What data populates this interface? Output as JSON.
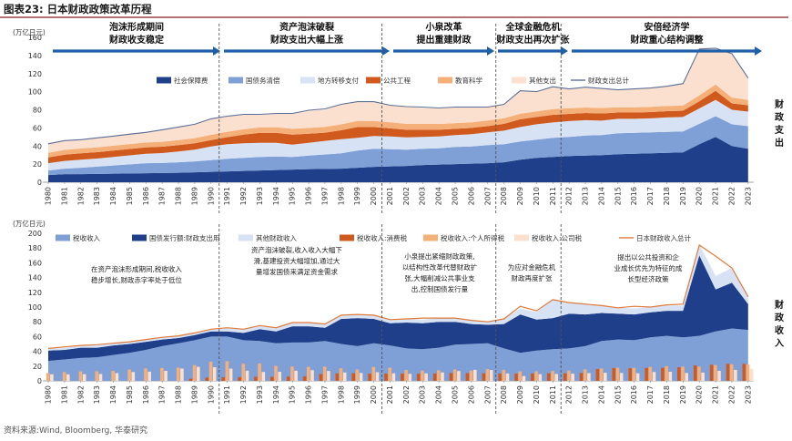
{
  "figure": {
    "title": "图表23:  日本财政政策改革历程",
    "source": "资料来源:Wind, Bloomberg, 华泰研究",
    "colors": {
      "dark_blue": "#1F3F8A",
      "mid_blue": "#7FA0D6",
      "light_blue": "#D8E2F5",
      "orange": "#D05A1E",
      "light_orange": "#F5B07A",
      "pale_orange": "#FBE0CF",
      "line": "#5A6F96",
      "arrow": "#1F5FA8",
      "title_rule": "#8B1A1A"
    }
  },
  "phases": [
    {
      "lines": [
        "泡沫形成期间",
        "财政收支稳定"
      ]
    },
    {
      "lines": [
        "资产泡沫破裂",
        "财政支出大幅上涨"
      ]
    },
    {
      "lines": [
        "小泉改革",
        "提出重建财政"
      ]
    },
    {
      "lines": [
        "全球金融危机",
        "财政支出再次扩张"
      ]
    },
    {
      "lines": [
        "安倍经济学",
        "财政重心结构调整"
      ]
    }
  ],
  "notes": [
    {
      "lines": [
        "在资产泡沫形成期间,税收收入",
        "稳步增长,财政赤字率处于低位"
      ]
    },
    {
      "lines": [
        "资产泡沫破裂,收入收入大幅下",
        "滑,基建投资大幅增加,通过大",
        "量增发国债来满足资金需求"
      ]
    },
    {
      "lines": [
        "小泉提出紧缩财政政策,",
        "以结构性改革代替财政扩",
        "张,大幅削减公共事业支",
        "出,控制国债发行量"
      ]
    },
    {
      "lines": [
        "为应对金融危机",
        "财政再度扩张"
      ]
    },
    {
      "lines": [
        "提出以公共投资和企",
        "业成长优先为特征的成",
        "长型经济政策"
      ]
    }
  ],
  "chart_data": [
    {
      "type": "area",
      "id": "expenditure",
      "unit_label": "(万亿日元)",
      "side_label": "财政支出",
      "ylim": [
        0,
        160
      ],
      "yticks": [
        0,
        20,
        40,
        60,
        80,
        100,
        120,
        140,
        160
      ],
      "x": [
        1980,
        1981,
        1982,
        1983,
        1984,
        1985,
        1986,
        1987,
        1988,
        1989,
        1990,
        1991,
        1992,
        1993,
        1994,
        1995,
        1996,
        1997,
        1998,
        1999,
        2000,
        2001,
        2002,
        2003,
        2004,
        2005,
        2006,
        2007,
        2008,
        2009,
        2010,
        2011,
        2012,
        2013,
        2014,
        2015,
        2016,
        2017,
        2018,
        2019,
        2020,
        2021,
        2022,
        2023
      ],
      "legend_placement": "top",
      "series": [
        {
          "name": "社会保障费",
          "color": "#1F3F8A",
          "values": [
            8,
            9,
            9,
            9.2,
            9.5,
            9.7,
            10,
            10.2,
            10.5,
            11,
            11.5,
            12,
            12.5,
            13,
            13.5,
            14,
            14.5,
            14.7,
            15,
            16,
            17,
            17.5,
            18,
            19,
            19.5,
            20,
            20.5,
            21,
            22,
            25,
            27,
            28,
            29,
            29.5,
            30,
            31,
            31.5,
            32,
            32.5,
            33,
            42,
            50,
            40,
            37
          ]
        },
        {
          "name": "国债务清偿",
          "color": "#7FA0D6",
          "values": [
            5,
            6,
            7,
            8,
            9,
            10,
            11,
            11,
            11.5,
            12,
            13,
            14,
            14.5,
            15,
            15,
            14,
            15,
            16,
            17,
            19,
            20,
            19,
            18,
            18,
            18,
            19,
            19,
            20,
            20,
            20,
            20,
            21,
            21,
            22,
            22,
            23,
            23,
            23,
            23,
            23,
            22.5,
            23,
            24,
            25
          ]
        },
        {
          "name": "地方转移支付",
          "color": "#D8E2F5",
          "values": [
            8,
            8.5,
            9,
            9,
            9.5,
            10,
            10.5,
            11,
            12,
            13,
            15,
            16,
            16,
            15.5,
            15,
            13.5,
            14,
            15,
            15.5,
            14,
            14,
            14,
            13.5,
            13,
            13,
            13,
            13.5,
            14,
            15,
            16,
            17,
            17,
            17.5,
            17,
            16,
            16,
            15.5,
            15.5,
            16,
            16,
            17,
            18,
            16,
            16
          ]
        },
        {
          "name": "公共工程",
          "color": "#D05A1E",
          "values": [
            6.5,
            7,
            7,
            7,
            7,
            7,
            6.9,
            7,
            7,
            7,
            7,
            7.8,
            9.5,
            11,
            11,
            11,
            10,
            9,
            10,
            12,
            10,
            9,
            8.5,
            8,
            7.5,
            7,
            7,
            7,
            7.5,
            8.5,
            8,
            8.5,
            8,
            8,
            8,
            7,
            7,
            7,
            7,
            7,
            8,
            10,
            7,
            7
          ]
        },
        {
          "name": "教育科学",
          "color": "#F5B07A",
          "values": [
            5,
            5.2,
            5.2,
            5.3,
            5.4,
            5.5,
            5.5,
            5.5,
            5.6,
            5.7,
            5.8,
            5.9,
            6,
            6.2,
            6.3,
            6.5,
            6.5,
            6.5,
            6.5,
            6.6,
            6.6,
            6.6,
            6.5,
            6.5,
            6.4,
            6.3,
            6.2,
            6.1,
            6.1,
            6.3,
            6.2,
            6.2,
            6.2,
            6,
            6,
            5.8,
            5.8,
            5.7,
            5.7,
            5.6,
            6.5,
            7,
            6.5,
            6
          ]
        },
        {
          "name": "其他支出",
          "color": "#FBE0CF",
          "values": [
            10,
            10.3,
            10.3,
            10.5,
            11,
            11.8,
            11.6,
            13.3,
            14.4,
            15.3,
            17.7,
            17.3,
            16.5,
            14.3,
            15.2,
            17,
            19,
            18.8,
            22,
            21.4,
            21.4,
            18.9,
            19,
            17.5,
            17.6,
            17.7,
            16.8,
            14.9,
            15.4,
            25.2,
            21.8,
            25.3,
            21.3,
            22.5,
            21.5,
            19.2,
            20.2,
            20.8,
            21.8,
            24.4,
            52.5,
            40,
            48.5,
            24
          ]
        },
        {
          "name": "财政支出总计",
          "color": "#5A6F96",
          "type": "line",
          "values": [
            42.5,
            46,
            47,
            49,
            50.9,
            53,
            55,
            58,
            61,
            64,
            70,
            73,
            75,
            75,
            76,
            76,
            79.5,
            81,
            86,
            89,
            89,
            85,
            83.5,
            83,
            82,
            83,
            83,
            83,
            86,
            101,
            100,
            105.5,
            103,
            105,
            103.5,
            102,
            103,
            104,
            106,
            109,
            147,
            148,
            142,
            115
          ]
        }
      ]
    },
    {
      "type": "bar",
      "id": "revenue",
      "unit_label": "(万亿日元)",
      "side_label": "财政收入",
      "ylim": [
        0,
        200
      ],
      "yticks": [
        0,
        20,
        40,
        60,
        80,
        100,
        120,
        140,
        160,
        180,
        200
      ],
      "x": [
        1980,
        1981,
        1982,
        1983,
        1984,
        1985,
        1986,
        1987,
        1988,
        1989,
        1990,
        1991,
        1992,
        1993,
        1994,
        1995,
        1996,
        1997,
        1998,
        1999,
        2000,
        2001,
        2002,
        2003,
        2004,
        2005,
        2006,
        2007,
        2008,
        2009,
        2010,
        2011,
        2012,
        2013,
        2014,
        2015,
        2016,
        2017,
        2018,
        2019,
        2020,
        2021,
        2022,
        2023
      ],
      "legend_placement": "top",
      "series": [
        {
          "name": "税收收入",
          "color": "#7FA0D6",
          "type": "area",
          "values": [
            27,
            29,
            31,
            32,
            35,
            38,
            42,
            47,
            51,
            55,
            60,
            60,
            55,
            54,
            51,
            52,
            52,
            54,
            50,
            47,
            51,
            48,
            44,
            43,
            45,
            49,
            50,
            51,
            44,
            38,
            41,
            43,
            44,
            47,
            54,
            56,
            55,
            59,
            61,
            59,
            61,
            67,
            71,
            69
          ]
        },
        {
          "name": "国债发行额:财政支出用",
          "color": "#1F3F8A",
          "type": "area",
          "values": [
            14,
            13,
            14,
            13,
            13,
            12,
            11,
            9,
            7,
            7,
            7,
            7,
            10,
            16,
            16,
            22,
            22,
            18,
            34,
            38,
            33,
            30,
            35,
            35,
            35,
            31,
            27,
            25,
            33,
            52,
            42,
            42,
            47,
            43,
            38,
            35,
            35,
            34,
            34,
            36,
            109,
            57,
            62,
            35
          ]
        },
        {
          "name": "其他财政收入",
          "color": "#D8E2F5",
          "type": "area",
          "values": [
            3,
            3,
            3,
            3,
            3,
            3,
            3,
            3,
            3,
            3,
            3,
            5,
            5,
            5,
            5,
            5,
            5,
            5,
            5,
            5,
            5,
            5,
            5,
            5,
            5,
            5,
            5,
            5,
            7,
            8,
            10,
            25,
            15,
            15,
            10,
            8,
            8,
            7,
            7,
            7,
            15,
            18,
            20,
            10
          ]
        },
        {
          "name": "税收收入:消费税",
          "color": "#D05A1E",
          "type": "bar",
          "values": [
            0,
            0,
            0,
            0,
            0,
            0,
            0,
            0,
            0,
            3,
            4.6,
            5,
            5.2,
            5.6,
            5.6,
            5.8,
            6.1,
            9.3,
            10.1,
            10.4,
            9.8,
            9.8,
            9.8,
            9.6,
            10,
            10.6,
            10.5,
            10.3,
            10,
            9.8,
            10,
            10.2,
            10.3,
            10.8,
            16,
            17.4,
            17.2,
            17.5,
            17.7,
            18.4,
            21,
            21.9,
            23.1,
            23.1
          ]
        },
        {
          "name": "税收收入:个人所得税",
          "color": "#F5B07A",
          "type": "bar",
          "values": [
            10.8,
            12,
            12.8,
            13,
            13.6,
            15.4,
            16.8,
            17.5,
            18,
            21.4,
            26,
            26.7,
            23.2,
            23.7,
            20.4,
            19.5,
            19,
            19.2,
            17,
            15.4,
            18.8,
            17.8,
            14.8,
            13.9,
            14.5,
            15.6,
            14,
            16.1,
            15,
            12.9,
            13,
            13.5,
            14,
            15.5,
            16.8,
            17.8,
            17.6,
            18.9,
            19.9,
            19.2,
            19.2,
            21.4,
            22.5,
            22.1
          ]
        },
        {
          "name": "税收收入:公司税",
          "color": "#FBE0CF",
          "type": "bar",
          "values": [
            8.9,
            8.9,
            9,
            9.3,
            10.5,
            12,
            12.5,
            13.6,
            16.7,
            19,
            18.4,
            16.6,
            13.7,
            12.1,
            12.4,
            13.7,
            14.5,
            13.5,
            11.4,
            10.8,
            11.7,
            10.3,
            9.5,
            10.1,
            11.4,
            13.3,
            14.9,
            14.7,
            10,
            6.4,
            9,
            9.4,
            9.8,
            10.5,
            11,
            10.8,
            10.3,
            12,
            12.3,
            10.8,
            11.2,
            13.6,
            14.9,
            15.9
          ]
        },
        {
          "name": "日本财政收入总计",
          "color": "#E07A3A",
          "type": "line",
          "values": [
            44,
            46,
            48,
            49,
            51,
            53,
            56,
            59,
            61,
            65,
            70,
            72,
            70,
            75,
            72,
            79,
            79,
            77,
            89,
            90,
            89,
            83,
            84,
            85,
            85,
            85,
            82,
            80,
            84,
            101,
            95,
            110,
            106,
            104,
            102,
            99,
            101,
            100,
            103,
            104,
            184,
            169,
            153,
            114
          ]
        }
      ]
    }
  ]
}
